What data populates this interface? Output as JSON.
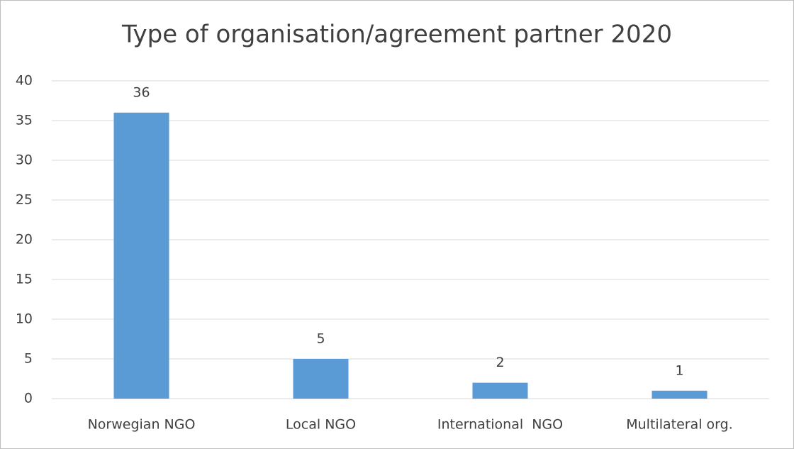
{
  "chart_data": {
    "type": "bar",
    "title": "Type of organisation/agreement partner 2020",
    "categories": [
      "Norwegian NGO",
      "Local NGO",
      "International  NGO",
      "Multilateral org."
    ],
    "values": [
      36,
      5,
      2,
      1
    ],
    "color": "#5b9bd5",
    "ylim": [
      0,
      40
    ],
    "yticks": [
      0,
      5,
      10,
      15,
      20,
      25,
      30,
      35,
      40
    ],
    "grid": true
  }
}
